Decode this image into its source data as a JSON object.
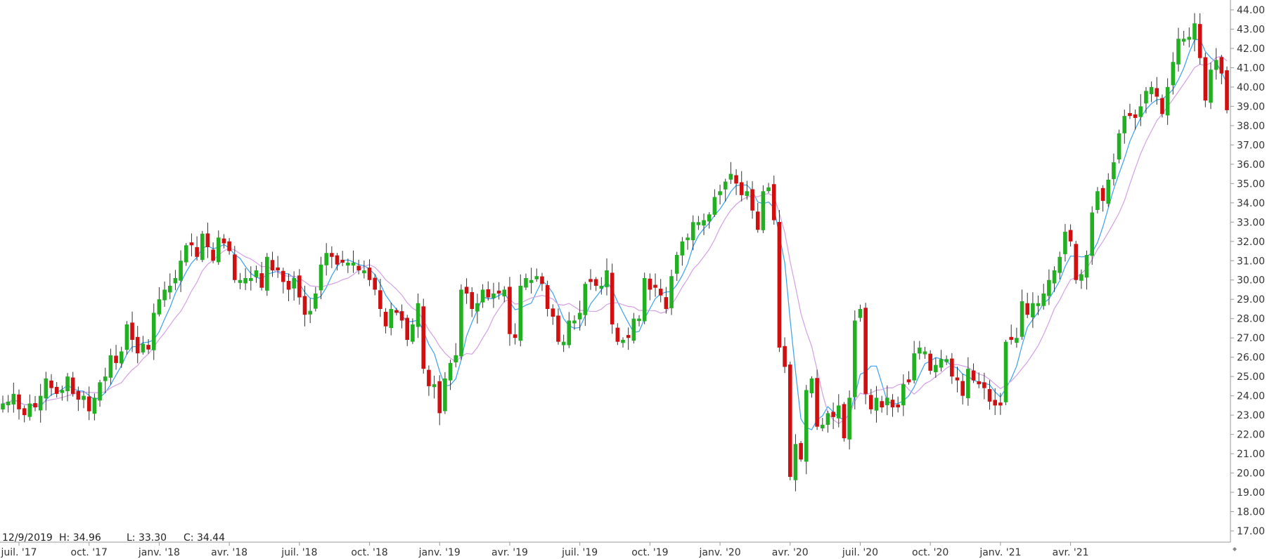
{
  "chart_data": {
    "type": "candlestick",
    "title": "",
    "xlabel": "",
    "ylabel": "",
    "ylim": [
      16.5,
      44.5
    ],
    "grid": false,
    "y_ticks": [
      "17.00",
      "18.00",
      "19.00",
      "20.00",
      "21.00",
      "22.00",
      "23.00",
      "24.00",
      "25.00",
      "26.00",
      "27.00",
      "28.00",
      "29.00",
      "30.00",
      "31.00",
      "32.00",
      "33.00",
      "34.00",
      "35.00",
      "36.00",
      "37.00",
      "38.00",
      "39.00",
      "40.00",
      "41.00",
      "42.00",
      "43.00",
      "44.00"
    ],
    "x_ticks": [
      {
        "label": "juil. '17",
        "week": 3
      },
      {
        "label": "oct. '17",
        "week": 16
      },
      {
        "label": "janv. '18",
        "week": 29
      },
      {
        "label": "avr. '18",
        "week": 42
      },
      {
        "label": "juil. '18",
        "week": 55
      },
      {
        "label": "oct. '18",
        "week": 68
      },
      {
        "label": "janv. '19",
        "week": 81
      },
      {
        "label": "avr. '19",
        "week": 94
      },
      {
        "label": "juil. '19",
        "week": 107
      },
      {
        "label": "oct. '19",
        "week": 120
      },
      {
        "label": "janv. '20",
        "week": 133
      },
      {
        "label": "avr. '20",
        "week": 146
      },
      {
        "label": "juil. '20",
        "week": 159
      },
      {
        "label": "oct. '20",
        "week": 172
      },
      {
        "label": "janv. '21",
        "week": 185
      },
      {
        "label": "avr. '21",
        "week": 198
      }
    ],
    "closes": [
      23.6,
      23.7,
      24.1,
      23.3,
      23.0,
      23.6,
      23.4,
      24.0,
      24.9,
      24.4,
      24.1,
      24.3,
      25.0,
      24.1,
      23.8,
      24.0,
      23.2,
      23.9,
      24.7,
      25.0,
      26.1,
      25.7,
      26.3,
      27.7,
      26.9,
      26.2,
      26.7,
      26.4,
      28.3,
      29.0,
      29.5,
      29.7,
      30.1,
      31.0,
      31.8,
      31.8,
      31.2,
      32.4,
      31.7,
      31.0,
      32.2,
      31.9,
      31.5,
      30.0,
      30.0,
      30.1,
      30.1,
      30.5,
      29.6,
      31.2,
      30.5,
      30.5,
      29.9,
      29.5,
      30.1,
      29.1,
      28.2,
      28.4,
      29.3,
      30.8,
      31.4,
      31.2,
      30.8,
      30.9,
      30.9,
      30.9,
      30.5,
      30.5,
      30.0,
      29.5,
      28.5,
      27.6,
      28.5,
      28.3,
      27.9,
      26.9,
      27.7,
      28.8,
      25.4,
      24.5,
      24.6,
      23.1,
      24.9,
      25.7,
      26.1,
      29.5,
      29.3,
      28.5,
      28.8,
      29.5,
      29.1,
      29.3,
      29.3,
      29.5,
      27.2,
      27.0,
      29.7,
      30.1,
      30.0,
      30.2,
      29.8,
      28.5,
      28.1,
      26.8,
      26.8,
      27.9,
      27.9,
      28.3,
      29.8,
      29.9,
      29.7,
      29.7,
      30.5,
      27.7,
      26.8,
      26.9,
      27.0,
      28.0,
      28.0,
      30.1,
      29.5,
      29.6,
      29.2,
      28.5,
      30.2,
      31.3,
      32.0,
      32.2,
      33.0,
      33.0,
      33.1,
      33.4,
      34.3,
      34.6,
      35.1,
      35.5,
      35.0,
      34.4,
      34.6,
      33.6,
      32.6,
      34.6,
      34.8,
      33.1,
      26.5,
      25.5,
      19.8,
      21.5,
      20.7,
      24.3,
      24.9,
      22.4,
      22.5,
      23.1,
      22.9,
      23.5,
      21.8,
      23.9,
      27.9,
      28.5,
      24.1,
      23.3,
      23.9,
      23.4,
      23.9,
      23.4,
      23.4,
      24.6,
      24.7,
      26.2,
      26.5,
      26.3,
      25.3,
      25.6,
      25.9,
      25.9,
      25.0,
      24.8,
      24.0,
      25.4,
      24.8,
      24.6,
      24.4,
      23.7,
      23.5,
      23.5,
      26.8,
      26.9,
      27.0,
      28.9,
      28.2,
      28.8,
      28.8,
      29.3,
      30.0,
      30.5,
      31.2,
      32.5,
      32.0,
      30.0,
      30.3,
      31.3,
      33.5,
      34.6,
      34.1,
      35.2,
      36.1,
      37.6,
      38.5,
      38.5,
      38.4,
      39.0,
      39.8,
      40.0,
      39.5,
      38.6,
      40.0,
      41.3,
      42.5,
      42.5,
      42.6,
      43.3,
      41.5,
      39.3,
      40.9,
      41.4,
      40.7,
      38.8
    ],
    "series": [
      {
        "type": "line",
        "color": "#3aa0f0",
        "values": "short moving average of closes"
      },
      {
        "type": "line",
        "color": "#d49fe6",
        "values": "long moving average of closes"
      }
    ],
    "up_color": "#22b022",
    "down_color": "#d01010",
    "readout": {
      "date": "12/9/2019",
      "high": "H: 34.96",
      "low": "L: 33.30",
      "close": "C: 34.44"
    }
  }
}
